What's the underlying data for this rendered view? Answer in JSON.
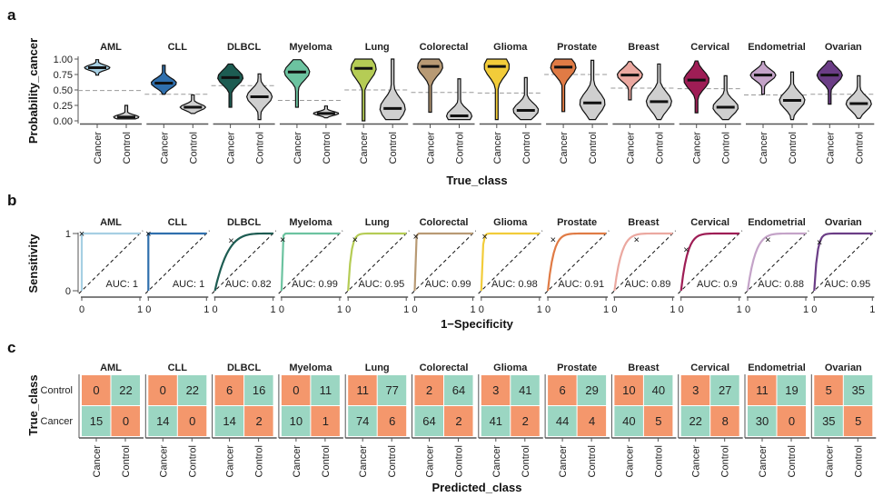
{
  "panel_labels": [
    "a",
    "b",
    "c"
  ],
  "categories": [
    "AML",
    "CLL",
    "DLBCL",
    "Myeloma",
    "Lung",
    "Colorectal",
    "Glioma",
    "Prostate",
    "Breast",
    "Cervical",
    "Endometrial",
    "Ovarian"
  ],
  "colors": [
    "#a6cfe3",
    "#2f6fad",
    "#1d5c52",
    "#6cc3a0",
    "#b5cc55",
    "#b89a74",
    "#f2cc3a",
    "#e07b45",
    "#eba8a0",
    "#9e1d55",
    "#c4a3c8",
    "#6b3d86"
  ],
  "chart_data": [
    {
      "type": "violin",
      "xlabel": "True_class",
      "ylabel": "Probability_cancer",
      "ylim": [
        0,
        1
      ],
      "yticks": [
        "0.00",
        "0.25",
        "0.50",
        "0.75",
        "1.00"
      ],
      "xticks": [
        "Cancer",
        "Control"
      ],
      "cancer_median": [
        0.86,
        0.61,
        0.7,
        0.79,
        0.85,
        0.88,
        0.88,
        0.87,
        0.74,
        0.66,
        0.74,
        0.74
      ],
      "cancer_range": [
        [
          0.74,
          0.99
        ],
        [
          0.43,
          0.9
        ],
        [
          0.22,
          0.92
        ],
        [
          0.22,
          0.99
        ],
        [
          0.0,
          1.0
        ],
        [
          0.14,
          1.0
        ],
        [
          0.02,
          1.0
        ],
        [
          0.15,
          1.0
        ],
        [
          0.34,
          0.96
        ],
        [
          0.13,
          0.97
        ],
        [
          0.43,
          0.96
        ],
        [
          0.27,
          0.97
        ]
      ],
      "control_median": [
        0.06,
        0.22,
        0.39,
        0.12,
        0.2,
        0.08,
        0.17,
        0.29,
        0.31,
        0.22,
        0.33,
        0.28
      ],
      "control_range": [
        [
          0.03,
          0.25
        ],
        [
          0.12,
          0.42
        ],
        [
          0.02,
          0.76
        ],
        [
          0.05,
          0.24
        ],
        [
          0.02,
          1.0
        ],
        [
          0.02,
          0.68
        ],
        [
          0.02,
          0.7
        ],
        [
          0.02,
          0.98
        ],
        [
          0.02,
          0.92
        ],
        [
          0.02,
          0.73
        ],
        [
          0.02,
          0.79
        ],
        [
          0.04,
          0.73
        ]
      ],
      "threshold": [
        0.49,
        0.43,
        0.57,
        0.33,
        0.5,
        0.46,
        0.45,
        0.75,
        0.53,
        0.52,
        0.42,
        0.43
      ]
    },
    {
      "type": "line",
      "xlabel": "1−Specificity",
      "ylabel": "Sensitivity",
      "xlim": [
        0,
        1
      ],
      "ylim": [
        0,
        1
      ],
      "xticks": [
        "0",
        "1"
      ],
      "yticks": [
        "0",
        "1"
      ],
      "auc": [
        "AUC: 1",
        "AUC: 1",
        "AUC: 0.82",
        "AUC: 0.99",
        "AUC: 0.95",
        "AUC: 0.99",
        "AUC: 0.98",
        "AUC: 0.91",
        "AUC: 0.89",
        "AUC: 0.9",
        "AUC: 0.88",
        "AUC: 0.95"
      ],
      "auc_values": [
        1,
        1,
        0.82,
        0.99,
        0.95,
        0.99,
        0.98,
        0.91,
        0.89,
        0.9,
        0.88,
        0.95
      ],
      "operating_point": [
        [
          0,
          1
        ],
        [
          0,
          1
        ],
        [
          0.28,
          0.88
        ],
        [
          0.02,
          0.9
        ],
        [
          0.12,
          0.9
        ],
        [
          0.02,
          0.95
        ],
        [
          0.06,
          0.95
        ],
        [
          0.09,
          0.9
        ],
        [
          0.38,
          0.9
        ],
        [
          0.09,
          0.72
        ],
        [
          0.35,
          0.9
        ],
        [
          0.09,
          0.85
        ]
      ]
    },
    {
      "type": "heatmap",
      "xlabel": "Predicted_class",
      "ylabel": "True_class",
      "xticks": [
        "Cancer",
        "Control"
      ],
      "yticks": [
        "Control",
        "Cancer"
      ],
      "correct_color": "#9bd6c2",
      "wrong_color": "#f4976c",
      "control_row": [
        [
          0,
          22
        ],
        [
          0,
          22
        ],
        [
          6,
          16
        ],
        [
          0,
          11
        ],
        [
          11,
          77
        ],
        [
          2,
          64
        ],
        [
          3,
          41
        ],
        [
          6,
          29
        ],
        [
          10,
          40
        ],
        [
          3,
          27
        ],
        [
          11,
          19
        ],
        [
          5,
          35
        ]
      ],
      "cancer_row": [
        [
          15,
          0
        ],
        [
          14,
          0
        ],
        [
          14,
          2
        ],
        [
          10,
          1
        ],
        [
          74,
          6
        ],
        [
          64,
          2
        ],
        [
          41,
          2
        ],
        [
          44,
          4
        ],
        [
          40,
          5
        ],
        [
          22,
          8
        ],
        [
          30,
          0
        ],
        [
          35,
          5
        ]
      ]
    }
  ]
}
